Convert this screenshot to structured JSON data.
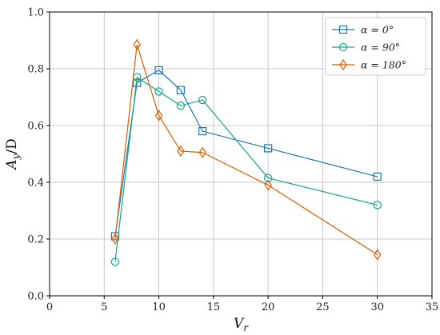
{
  "chart_data": {
    "type": "line",
    "xlabel": "V",
    "xlabel_sub": "r",
    "ylabel": "A",
    "ylabel_sub": "y",
    "ylabel_suffix": "/D",
    "xlim": [
      0,
      35
    ],
    "ylim": [
      0.0,
      1.0
    ],
    "xticks": [
      0,
      5,
      10,
      15,
      20,
      25,
      30,
      35
    ],
    "yticks": [
      0.0,
      0.2,
      0.4,
      0.6,
      0.8,
      1.0
    ],
    "xtick_labels": [
      "0",
      "5",
      "10",
      "15",
      "20",
      "25",
      "30",
      "35"
    ],
    "ytick_labels": [
      "0.0",
      "0.2",
      "0.4",
      "0.6",
      "0.8",
      "1.0"
    ],
    "grid": true,
    "legend_position": "top-right",
    "series": [
      {
        "name": "α = 0°",
        "color": "#1f77b4",
        "marker": "square",
        "x": [
          6,
          8,
          10,
          12,
          14,
          20,
          30
        ],
        "y": [
          0.21,
          0.75,
          0.795,
          0.725,
          0.58,
          0.52,
          0.42
        ]
      },
      {
        "name": "α = 90°",
        "color": "#17a589",
        "marker": "circle",
        "x": [
          6,
          8,
          10,
          12,
          14,
          20,
          30
        ],
        "y": [
          0.12,
          0.77,
          0.72,
          0.67,
          0.69,
          0.415,
          0.32
        ]
      },
      {
        "name": "α = 180°",
        "color": "#d95f02",
        "marker": "diamond",
        "x": [
          6,
          8,
          10,
          12,
          14,
          20,
          30
        ],
        "y": [
          0.2,
          0.885,
          0.635,
          0.51,
          0.505,
          0.39,
          0.145
        ]
      }
    ]
  }
}
